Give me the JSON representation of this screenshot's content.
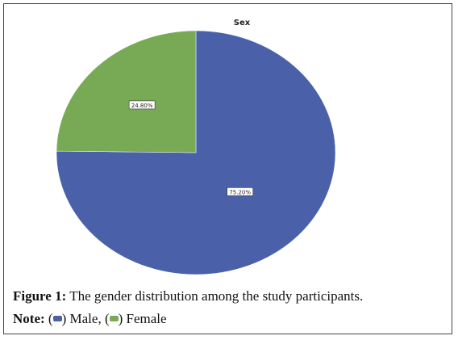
{
  "chart_data": {
    "type": "pie",
    "title": "Sex",
    "categories": [
      "Male",
      "Female"
    ],
    "values": [
      75.2,
      24.8
    ],
    "value_labels": [
      "75.20%",
      "24.80%"
    ],
    "colors": [
      "#4a61a9",
      "#78aa56"
    ]
  },
  "caption": {
    "label": "Figure 1:",
    "text": "The gender distribution among the study participants.",
    "note_label": "Note:"
  }
}
